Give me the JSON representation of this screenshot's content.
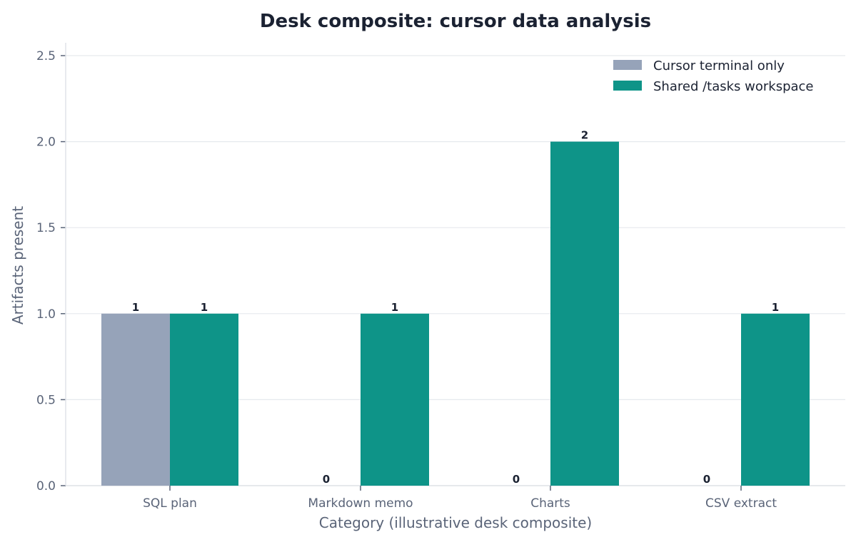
{
  "chart_data": {
    "type": "bar",
    "title": "Desk composite: cursor data analysis",
    "xlabel": "Category (illustrative desk composite)",
    "ylabel": "Artifacts present",
    "categories": [
      "SQL plan",
      "Markdown memo",
      "Charts",
      "CSV extract"
    ],
    "series": [
      {
        "name": "Cursor terminal only",
        "values": [
          1,
          0,
          0,
          0
        ],
        "color": "#96a3b9"
      },
      {
        "name": "Shared /tasks workspace",
        "values": [
          1,
          1,
          2,
          1
        ],
        "color": "#0e9488"
      }
    ],
    "ylim": [
      0,
      2.5
    ],
    "yticks": [
      "0.0",
      "0.5",
      "1.0",
      "1.5",
      "2.0",
      "2.5"
    ],
    "grid": true,
    "legend": "top-right"
  }
}
